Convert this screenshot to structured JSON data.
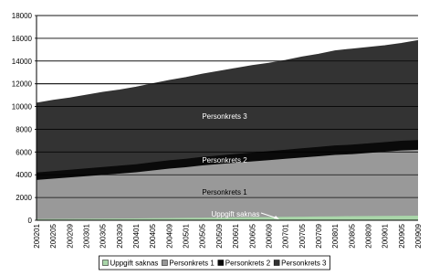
{
  "chart_data": {
    "type": "stacked-area",
    "categories": [
      "200201",
      "200205",
      "200209",
      "200301",
      "200305",
      "200309",
      "200401",
      "200405",
      "200409",
      "200501",
      "200505",
      "200509",
      "200601",
      "200605",
      "200609",
      "200701",
      "200705",
      "200709",
      "200801",
      "200805",
      "200809",
      "200901",
      "200905",
      "200909"
    ],
    "series": [
      {
        "name": "Uppgift saknas",
        "color": "#a9d6a9",
        "values": [
          100,
          110,
          120,
          130,
          140,
          150,
          165,
          180,
          195,
          210,
          225,
          240,
          255,
          270,
          285,
          300,
          315,
          330,
          345,
          360,
          370,
          380,
          390,
          400
        ]
      },
      {
        "name": "Personkrets 1",
        "color": "#999999",
        "values": [
          3450,
          3550,
          3650,
          3750,
          3850,
          3950,
          4050,
          4200,
          4350,
          4450,
          4600,
          4700,
          4800,
          4900,
          5000,
          5100,
          5200,
          5300,
          5400,
          5450,
          5550,
          5650,
          5750,
          5800
        ]
      },
      {
        "name": "Personkrets 2",
        "color": "#0a0a0a",
        "values": [
          650,
          660,
          670,
          680,
          690,
          700,
          710,
          720,
          730,
          740,
          750,
          760,
          770,
          780,
          790,
          800,
          810,
          820,
          830,
          835,
          840,
          845,
          848,
          850
        ]
      },
      {
        "name": "Personkrets 3",
        "color": "#333333",
        "values": [
          6100,
          6230,
          6310,
          6440,
          6570,
          6650,
          6775,
          6900,
          7025,
          7150,
          7275,
          7400,
          7525,
          7650,
          7725,
          7850,
          8025,
          8150,
          8325,
          8405,
          8440,
          8475,
          8562,
          8750
        ]
      }
    ],
    "ylim": [
      0,
      18000
    ],
    "yticks": [
      0,
      2000,
      4000,
      6000,
      8000,
      10000,
      12000,
      14000,
      16000,
      18000
    ],
    "grid": true,
    "legend": "bottom"
  }
}
